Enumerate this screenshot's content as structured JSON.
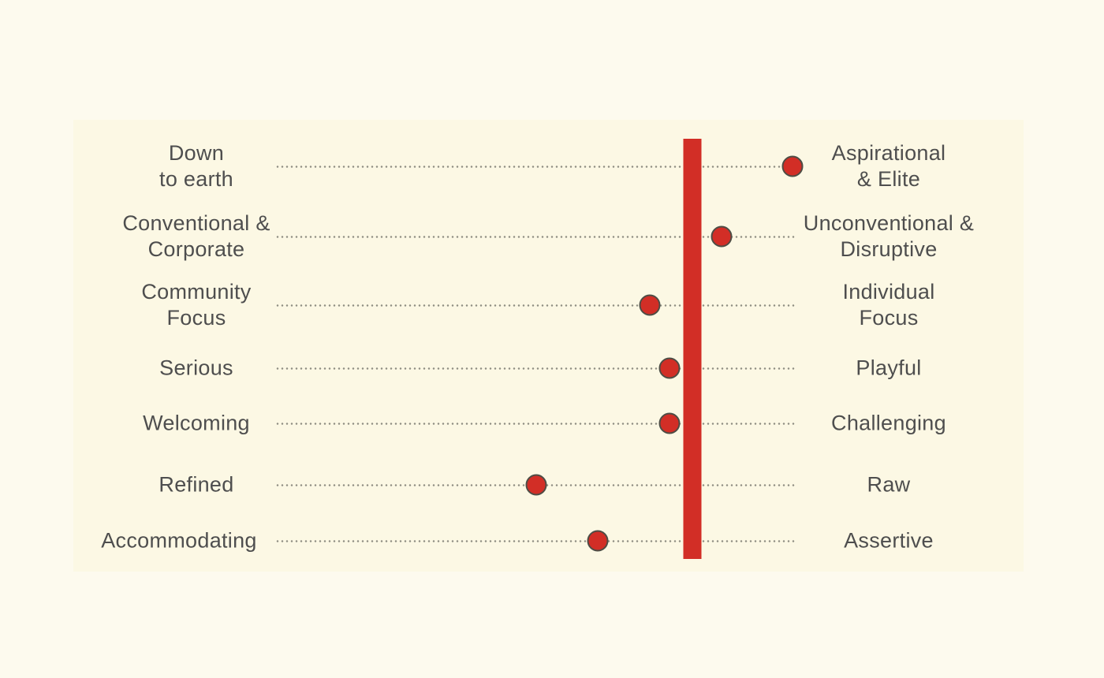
{
  "page": {
    "background_outer": "#fdfaee",
    "background_panel": "#fcf8e4"
  },
  "chart_data": {
    "type": "scatter",
    "title": "",
    "subtitle": "",
    "description": "Brand personality spectrum: red dots mark positions between opposing traits; thick red vertical bar is a reference position",
    "axis": {
      "min": 0,
      "max": 1,
      "grid": "horizontal dotted lines per row",
      "legend": "none"
    },
    "reference_bar": {
      "value": 0.802
    },
    "rows": [
      {
        "left": "Down to earth",
        "left_lines": [
          "Down",
          "to earth"
        ],
        "right": "Aspirational & Elite",
        "right_lines": [
          "Aspirational",
          "& Elite"
        ],
        "value": 0.995
      },
      {
        "left": "Conventional & Corporate",
        "left_lines": [
          "Conventional &",
          "Corporate"
        ],
        "right": "Unconventional & Disruptive",
        "right_lines": [
          "Unconventional &",
          "Disruptive"
        ],
        "value": 0.859
      },
      {
        "left": "Community Focus",
        "left_lines": [
          "Community",
          "Focus"
        ],
        "right": "Individual Focus",
        "right_lines": [
          "Individual",
          "Focus"
        ],
        "value": 0.721
      },
      {
        "left": "Serious",
        "left_lines": [
          "Serious"
        ],
        "right": "Playful",
        "right_lines": [
          "Playful"
        ],
        "value": 0.759
      },
      {
        "left": "Welcoming",
        "left_lines": [
          "Welcoming"
        ],
        "right": "Challenging",
        "right_lines": [
          "Challenging"
        ],
        "value": 0.759
      },
      {
        "left": "Refined",
        "left_lines": [
          "Refined"
        ],
        "right": "Raw",
        "right_lines": [
          "Raw"
        ],
        "value": 0.502
      },
      {
        "left": "Accommodating",
        "left_lines": [
          "Accommodating"
        ],
        "right": "Assertive",
        "right_lines": [
          "Assertive"
        ],
        "value": 0.621
      }
    ],
    "colors": {
      "accent_red": "#d22e26",
      "dot_stroke": "#4e4d45",
      "label_text": "#4e4e4e",
      "dotted_line": "#8f8d82"
    }
  }
}
